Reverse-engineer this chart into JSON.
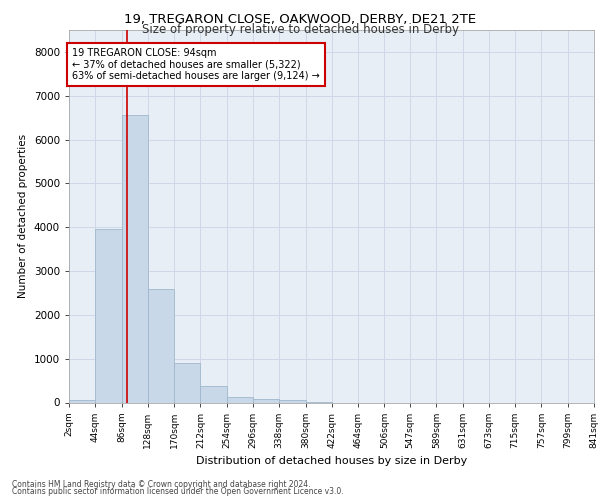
{
  "title_line1": "19, TREGARON CLOSE, OAKWOOD, DERBY, DE21 2TE",
  "title_line2": "Size of property relative to detached houses in Derby",
  "xlabel": "Distribution of detached houses by size in Derby",
  "ylabel": "Number of detached properties",
  "bar_color": "#c8d8e8",
  "bar_edgecolor": "#a0b8cc",
  "grid_color": "#d0d8e8",
  "annotation_box_color": "#cc0000",
  "marker_line_color": "#cc0000",
  "footnote1": "Contains HM Land Registry data © Crown copyright and database right 2024.",
  "footnote2": "Contains public sector information licensed under the Open Government Licence v3.0.",
  "annotation_line1": "19 TREGARON CLOSE: 94sqm",
  "annotation_line2": "← 37% of detached houses are smaller (5,322)",
  "annotation_line3": "63% of semi-detached houses are larger (9,124) →",
  "property_size": 94,
  "bin_edges": [
    2,
    44,
    86,
    128,
    170,
    212,
    254,
    296,
    338,
    380,
    422,
    464,
    506,
    547,
    589,
    631,
    673,
    715,
    757,
    799,
    841
  ],
  "bar_heights": [
    50,
    3950,
    6550,
    2600,
    900,
    380,
    130,
    90,
    50,
    10,
    0,
    0,
    0,
    0,
    0,
    0,
    0,
    0,
    0,
    0
  ],
  "ylim": [
    0,
    8500
  ],
  "yticks": [
    0,
    1000,
    2000,
    3000,
    4000,
    5000,
    6000,
    7000,
    8000
  ],
  "background_color": "#e8eef5",
  "fig_background": "#ffffff"
}
